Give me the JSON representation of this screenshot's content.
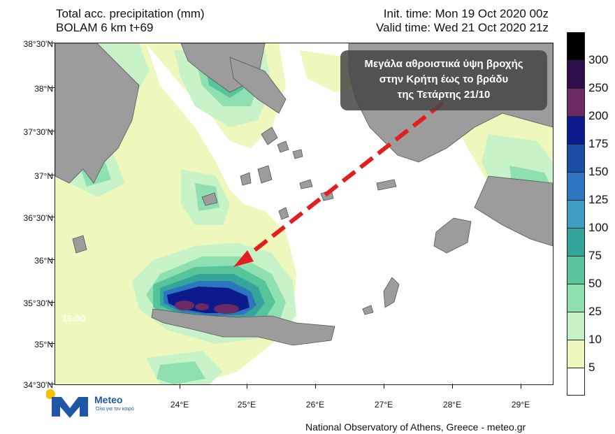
{
  "header": {
    "title": "Total acc. precipitation (mm)",
    "model": "BOLAM 6 km t+69",
    "init_time": "Init. time: Mon 19 Oct 2020 00z",
    "valid_time": "Valid time: Wed 21 Oct 2020 21z"
  },
  "axes": {
    "lat_labels": [
      "38°30'N",
      "38°N",
      "37°30'N",
      "37°N",
      "36°30'N",
      "36°N",
      "35°30'N",
      "35°N",
      "34°30'N"
    ],
    "lon_labels": [
      "24°E",
      "25°E",
      "26°E",
      "27°E",
      "28°E",
      "29°E"
    ]
  },
  "legend": {
    "labels": [
      "300",
      "250",
      "200",
      "175",
      "150",
      "125",
      "100",
      "75",
      "50",
      "25",
      "10",
      "5"
    ],
    "colors": [
      "#000000",
      "#2e0e4a",
      "#6b2a63",
      "#0d1a8c",
      "#1a4ea6",
      "#2d76bf",
      "#3d9bc4",
      "#35a59b",
      "#57c49a",
      "#8fe0b0",
      "#c8f2c8",
      "#eef8bd",
      "#ffffff"
    ]
  },
  "callout": {
    "lines": [
      "Μεγάλα αθροιστικά  ύψη βροχής",
      "στην Κρήτη έως το βράδυ",
      "της Τετάρτης 21/10"
    ]
  },
  "map": {
    "land_color": "#9c9c9c",
    "sea_color": "#ffffff",
    "arrow_color": "#e41e1e",
    "overlay_time": "15:00"
  },
  "logo": {
    "name": "Meteo",
    "tagline": "Όλα για τον καιρό",
    "brand_color": "#1e57a8",
    "sun_color": "#f5c200"
  },
  "footer": {
    "credit": "National Observatory of Athens, Greece - meteo.gr"
  }
}
